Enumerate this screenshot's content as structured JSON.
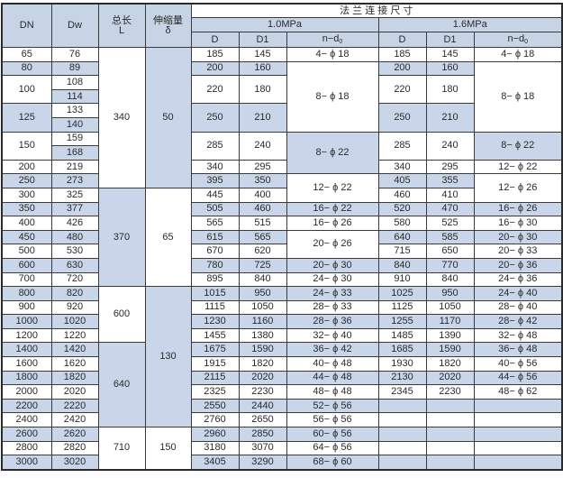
{
  "header": {
    "dn": "DN",
    "dw": "Dw",
    "length": "总长",
    "length_sym": "L",
    "expansion": "伸缩量",
    "expansion_sym": "δ",
    "flange": "法 兰 连 接 尺 寸",
    "p1": "1.0MPa",
    "p2": "1.6MPa",
    "d": "D",
    "d1": "D1",
    "nd": "n−d",
    "nd_sub": "0"
  },
  "rows": [
    [
      [
        "65",
        1,
        0
      ],
      [
        "76",
        1,
        0
      ],
      [
        "340",
        10,
        0
      ],
      [
        "50",
        10,
        1
      ],
      [
        "185",
        1,
        0
      ],
      [
        "145",
        1,
        0
      ],
      [
        "4− ϕ 18",
        1,
        0
      ],
      [
        "185",
        1,
        0
      ],
      [
        "145",
        1,
        0
      ],
      [
        "4− ϕ 18",
        1,
        0
      ]
    ],
    [
      [
        "80",
        1,
        1
      ],
      [
        "89",
        1,
        1
      ],
      [
        "200",
        1,
        1
      ],
      [
        "160",
        1,
        1
      ],
      [
        "8− ϕ 18",
        5,
        0
      ],
      [
        "200",
        1,
        1
      ],
      [
        "160",
        1,
        1
      ],
      [
        "8− ϕ 18",
        5,
        0
      ]
    ],
    [
      [
        "100",
        2,
        0
      ],
      [
        "108",
        1,
        0
      ],
      [
        "220",
        2,
        0
      ],
      [
        "180",
        2,
        0
      ],
      [
        "220",
        2,
        0
      ],
      [
        "180",
        2,
        0
      ]
    ],
    [
      [
        "114",
        1,
        1
      ]
    ],
    [
      [
        "125",
        2,
        1
      ],
      [
        "133",
        1,
        0
      ],
      [
        "250",
        2,
        1
      ],
      [
        "210",
        2,
        1
      ],
      [
        "250",
        2,
        1
      ],
      [
        "210",
        2,
        1
      ]
    ],
    [
      [
        "140",
        1,
        1
      ]
    ],
    [
      [
        "150",
        2,
        0
      ],
      [
        "159",
        1,
        0
      ],
      [
        "285",
        2,
        0
      ],
      [
        "240",
        2,
        0
      ],
      [
        "8− ϕ 22",
        3,
        1
      ],
      [
        "285",
        2,
        0
      ],
      [
        "240",
        2,
        0
      ],
      [
        "8− ϕ 22",
        2,
        1
      ]
    ],
    [
      [
        "168",
        1,
        1
      ]
    ],
    [
      [
        "200",
        1,
        0
      ],
      [
        "219",
        1,
        0
      ],
      [
        "340",
        1,
        0
      ],
      [
        "295",
        1,
        0
      ],
      [
        "340",
        1,
        0
      ],
      [
        "295",
        1,
        0
      ],
      [
        "12− ϕ 22",
        1,
        0
      ]
    ],
    [
      [
        "250",
        1,
        1
      ],
      [
        "273",
        1,
        1
      ],
      [
        "395",
        1,
        1
      ],
      [
        "350",
        1,
        1
      ],
      [
        "12− ϕ 22",
        2,
        0
      ],
      [
        "405",
        1,
        1
      ],
      [
        "355",
        1,
        1
      ],
      [
        "12− ϕ 26",
        2,
        0
      ]
    ],
    [
      [
        "300",
        1,
        0
      ],
      [
        "325",
        1,
        0
      ],
      [
        "370",
        7,
        1
      ],
      [
        "65",
        7,
        0
      ],
      [
        "445",
        1,
        0
      ],
      [
        "400",
        1,
        0
      ],
      [
        "460",
        1,
        0
      ],
      [
        "410",
        1,
        0
      ]
    ],
    [
      [
        "350",
        1,
        1
      ],
      [
        "377",
        1,
        1
      ],
      [
        "505",
        1,
        1
      ],
      [
        "460",
        1,
        1
      ],
      [
        "16− ϕ 22",
        1,
        1
      ],
      [
        "520",
        1,
        1
      ],
      [
        "470",
        1,
        1
      ],
      [
        "16− ϕ 26",
        1,
        1
      ]
    ],
    [
      [
        "400",
        1,
        0
      ],
      [
        "426",
        1,
        0
      ],
      [
        "565",
        1,
        0
      ],
      [
        "515",
        1,
        0
      ],
      [
        "16− ϕ 26",
        1,
        0
      ],
      [
        "580",
        1,
        0
      ],
      [
        "525",
        1,
        0
      ],
      [
        "16− ϕ 30",
        1,
        0
      ]
    ],
    [
      [
        "450",
        1,
        1
      ],
      [
        "480",
        1,
        1
      ],
      [
        "615",
        1,
        1
      ],
      [
        "565",
        1,
        1
      ],
      [
        "20− ϕ 26",
        2,
        0
      ],
      [
        "640",
        1,
        1
      ],
      [
        "585",
        1,
        1
      ],
      [
        "20− ϕ 30",
        1,
        1
      ]
    ],
    [
      [
        "500",
        1,
        0
      ],
      [
        "530",
        1,
        0
      ],
      [
        "670",
        1,
        0
      ],
      [
        "620",
        1,
        0
      ],
      [
        "715",
        1,
        0
      ],
      [
        "650",
        1,
        0
      ],
      [
        "20− ϕ 33",
        1,
        0
      ]
    ],
    [
      [
        "600",
        1,
        1
      ],
      [
        "630",
        1,
        1
      ],
      [
        "780",
        1,
        1
      ],
      [
        "725",
        1,
        1
      ],
      [
        "20− ϕ 30",
        1,
        1
      ],
      [
        "840",
        1,
        1
      ],
      [
        "770",
        1,
        1
      ],
      [
        "20− ϕ 36",
        1,
        1
      ]
    ],
    [
      [
        "700",
        1,
        0
      ],
      [
        "720",
        1,
        0
      ],
      [
        "895",
        1,
        0
      ],
      [
        "840",
        1,
        0
      ],
      [
        "24− ϕ 30",
        1,
        0
      ],
      [
        "910",
        1,
        0
      ],
      [
        "840",
        1,
        0
      ],
      [
        "24− ϕ 36",
        1,
        0
      ]
    ],
    [
      [
        "800",
        1,
        1
      ],
      [
        "820",
        1,
        1
      ],
      [
        "600",
        4,
        0
      ],
      [
        "130",
        10,
        1
      ],
      [
        "1015",
        1,
        1
      ],
      [
        "950",
        1,
        1
      ],
      [
        "24− ϕ 33",
        1,
        1
      ],
      [
        "1025",
        1,
        1
      ],
      [
        "950",
        1,
        1
      ],
      [
        "24− ϕ 40",
        1,
        1
      ]
    ],
    [
      [
        "900",
        1,
        0
      ],
      [
        "920",
        1,
        0
      ],
      [
        "1115",
        1,
        0
      ],
      [
        "1050",
        1,
        0
      ],
      [
        "28− ϕ 33",
        1,
        0
      ],
      [
        "1125",
        1,
        0
      ],
      [
        "1050",
        1,
        0
      ],
      [
        "28− ϕ 40",
        1,
        0
      ]
    ],
    [
      [
        "1000",
        1,
        1
      ],
      [
        "1020",
        1,
        1
      ],
      [
        "1230",
        1,
        1
      ],
      [
        "1160",
        1,
        1
      ],
      [
        "28− ϕ 36",
        1,
        1
      ],
      [
        "1255",
        1,
        1
      ],
      [
        "1170",
        1,
        1
      ],
      [
        "28− ϕ 42",
        1,
        1
      ]
    ],
    [
      [
        "1200",
        1,
        0
      ],
      [
        "1220",
        1,
        0
      ],
      [
        "1455",
        1,
        0
      ],
      [
        "1380",
        1,
        0
      ],
      [
        "32− ϕ 40",
        1,
        0
      ],
      [
        "1485",
        1,
        0
      ],
      [
        "1390",
        1,
        0
      ],
      [
        "32− ϕ 48",
        1,
        0
      ]
    ],
    [
      [
        "1400",
        1,
        1
      ],
      [
        "1420",
        1,
        1
      ],
      [
        "640",
        6,
        1
      ],
      [
        "1675",
        1,
        1
      ],
      [
        "1590",
        1,
        1
      ],
      [
        "36− ϕ 42",
        1,
        1
      ],
      [
        "1685",
        1,
        1
      ],
      [
        "1590",
        1,
        1
      ],
      [
        "36− ϕ 48",
        1,
        1
      ]
    ],
    [
      [
        "1600",
        1,
        0
      ],
      [
        "1620",
        1,
        0
      ],
      [
        "1915",
        1,
        0
      ],
      [
        "1820",
        1,
        0
      ],
      [
        "40− ϕ 48",
        1,
        0
      ],
      [
        "1930",
        1,
        0
      ],
      [
        "1820",
        1,
        0
      ],
      [
        "40− ϕ 56",
        1,
        0
      ]
    ],
    [
      [
        "1800",
        1,
        1
      ],
      [
        "1820",
        1,
        1
      ],
      [
        "2115",
        1,
        1
      ],
      [
        "2020",
        1,
        1
      ],
      [
        "44− ϕ 48",
        1,
        1
      ],
      [
        "2130",
        1,
        1
      ],
      [
        "2020",
        1,
        1
      ],
      [
        "44− ϕ 56",
        1,
        1
      ]
    ],
    [
      [
        "2000",
        1,
        0
      ],
      [
        "2020",
        1,
        0
      ],
      [
        "2325",
        1,
        0
      ],
      [
        "2230",
        1,
        0
      ],
      [
        "48− ϕ 48",
        1,
        0
      ],
      [
        "2345",
        1,
        0
      ],
      [
        "2230",
        1,
        0
      ],
      [
        "48− ϕ 62",
        1,
        0
      ]
    ],
    [
      [
        "2200",
        1,
        1
      ],
      [
        "2220",
        1,
        1
      ],
      [
        "2550",
        1,
        1
      ],
      [
        "2440",
        1,
        1
      ],
      [
        "52− ϕ 56",
        1,
        1
      ],
      [
        "",
        1,
        1
      ],
      [
        "",
        1,
        1
      ],
      [
        "",
        1,
        1
      ]
    ],
    [
      [
        "2400",
        1,
        0
      ],
      [
        "2420",
        1,
        0
      ],
      [
        "2760",
        1,
        0
      ],
      [
        "2650",
        1,
        0
      ],
      [
        "56− ϕ 56",
        1,
        0
      ],
      [
        "",
        1,
        0
      ],
      [
        "",
        1,
        0
      ],
      [
        "",
        1,
        0
      ]
    ],
    [
      [
        "2600",
        1,
        1
      ],
      [
        "2620",
        1,
        1
      ],
      [
        "710",
        3,
        0
      ],
      [
        "150",
        3,
        0
      ],
      [
        "2960",
        1,
        1
      ],
      [
        "2850",
        1,
        1
      ],
      [
        "60− ϕ 56",
        1,
        1
      ],
      [
        "",
        1,
        1
      ],
      [
        "",
        1,
        1
      ],
      [
        "",
        1,
        1
      ]
    ],
    [
      [
        "2800",
        1,
        0
      ],
      [
        "2820",
        1,
        0
      ],
      [
        "3180",
        1,
        0
      ],
      [
        "3070",
        1,
        0
      ],
      [
        "64− ϕ 56",
        1,
        0
      ],
      [
        "",
        1,
        0
      ],
      [
        "",
        1,
        0
      ],
      [
        "",
        1,
        0
      ]
    ],
    [
      [
        "3000",
        1,
        1
      ],
      [
        "3020",
        1,
        1
      ],
      [
        "3405",
        1,
        1
      ],
      [
        "3290",
        1,
        1
      ],
      [
        "68− ϕ 60",
        1,
        1
      ],
      [
        "",
        1,
        1
      ],
      [
        "",
        1,
        1
      ],
      [
        "",
        1,
        1
      ]
    ]
  ]
}
